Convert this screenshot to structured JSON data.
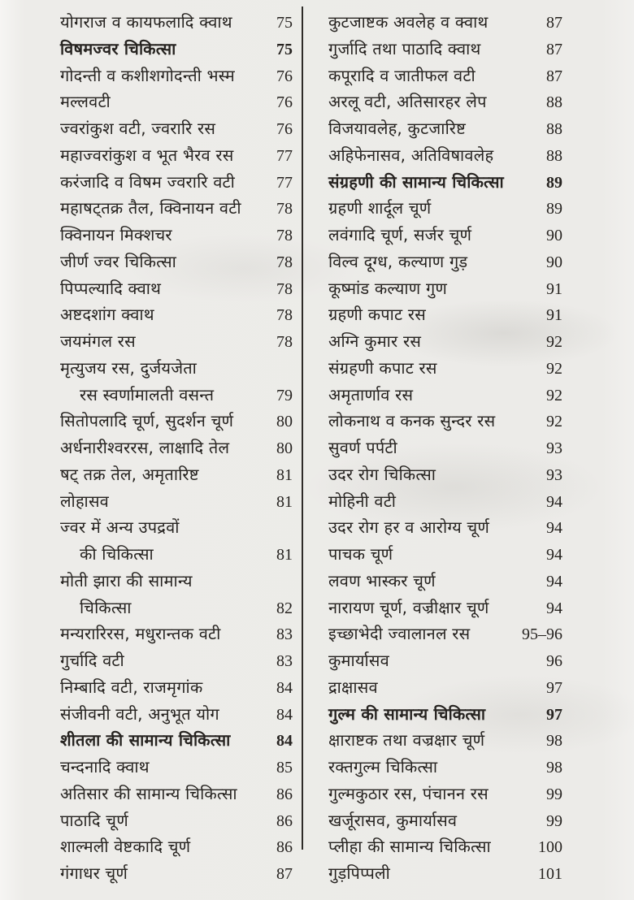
{
  "toc": {
    "left_column": {
      "entries": [
        {
          "title": "योगराज व कायफलादि क्वाथ",
          "page": "75",
          "bold": false,
          "indent": false
        },
        {
          "title": "विषमज्वर चिकित्सा",
          "page": "75",
          "bold": true,
          "indent": false
        },
        {
          "title": "गोदन्ती व कशीशगोदन्ती भस्म",
          "page": "76",
          "bold": false,
          "indent": false
        },
        {
          "title": "मल्लवटी",
          "page": "76",
          "bold": false,
          "indent": false
        },
        {
          "title": "ज्वरांकुश वटी, ज्वरारि रस",
          "page": "76",
          "bold": false,
          "indent": false
        },
        {
          "title": "महाज्वरांकुश व भूत भैरव रस",
          "page": "77",
          "bold": false,
          "indent": false
        },
        {
          "title": "करंजादि व विषम ज्वरारि वटी",
          "page": "77",
          "bold": false,
          "indent": false
        },
        {
          "title": "महाषट्तक्र तैल, क्विनायन वटी",
          "page": "78",
          "bold": false,
          "indent": false
        },
        {
          "title": "क्विनायन मिक्शचर",
          "page": "78",
          "bold": false,
          "indent": false
        },
        {
          "title": "जीर्ण ज्वर चिकित्सा",
          "page": "78",
          "bold": false,
          "indent": false
        },
        {
          "title": "पिप्पल्यादि क्वाथ",
          "page": "78",
          "bold": false,
          "indent": false
        },
        {
          "title": "अष्टदशांग क्वाथ",
          "page": "78",
          "bold": false,
          "indent": false
        },
        {
          "title": "जयमंगल रस",
          "page": "78",
          "bold": false,
          "indent": false
        },
        {
          "title": "मृत्युजय रस, दुर्जयजेता",
          "page": "",
          "bold": false,
          "indent": false
        },
        {
          "title": "रस स्वर्णामालती वसन्त",
          "page": "79",
          "bold": false,
          "indent": true
        },
        {
          "title": "सितोपलादि चूर्ण, सुदर्शन चूर्ण",
          "page": "80",
          "bold": false,
          "indent": false
        },
        {
          "title": "अर्धनारीश्वररस, लाक्षादि तेल",
          "page": "80",
          "bold": false,
          "indent": false
        },
        {
          "title": "षट् तक्र तेल, अमृतारिष्ट",
          "page": "81",
          "bold": false,
          "indent": false
        },
        {
          "title": "लोहासव",
          "page": "81",
          "bold": false,
          "indent": false
        },
        {
          "title": "ज्वर में अन्य उपद्रवों",
          "page": "",
          "bold": false,
          "indent": false
        },
        {
          "title": "की चिकित्सा",
          "page": "81",
          "bold": false,
          "indent": true
        },
        {
          "title": "मोती झारा की सामान्य",
          "page": "",
          "bold": false,
          "indent": false
        },
        {
          "title": "चिकित्सा",
          "page": "82",
          "bold": false,
          "indent": true
        },
        {
          "title": "मन्यरारिरस, मधुरान्तक वटी",
          "page": "83",
          "bold": false,
          "indent": false
        },
        {
          "title": "गुर्चादि वटी",
          "page": "83",
          "bold": false,
          "indent": false
        },
        {
          "title": "निम्बादि वटी, राजमृगांक",
          "page": "84",
          "bold": false,
          "indent": false
        },
        {
          "title": "संजीवनी वटी, अनुभूत योग",
          "page": "84",
          "bold": false,
          "indent": false
        },
        {
          "title": "शीतला की सामान्य चिकित्सा",
          "page": "84",
          "bold": true,
          "indent": false
        },
        {
          "title": "चन्दनादि क्वाथ",
          "page": "85",
          "bold": false,
          "indent": false
        },
        {
          "title": "अतिसार की सामान्य चिकित्सा",
          "page": "86",
          "bold": false,
          "indent": false
        },
        {
          "title": "पाठादि चूर्ण",
          "page": "86",
          "bold": false,
          "indent": false
        },
        {
          "title": "शाल्मली वेष्टकादि चूर्ण",
          "page": "86",
          "bold": false,
          "indent": false
        },
        {
          "title": "गंगाधर चूर्ण",
          "page": "87",
          "bold": false,
          "indent": false
        }
      ]
    },
    "right_column": {
      "entries": [
        {
          "title": "कुटजाष्टक अवलेह व क्वाथ",
          "page": "87",
          "bold": false,
          "indent": false
        },
        {
          "title": "गुर्जादि तथा पाठादि क्वाथ",
          "page": "87",
          "bold": false,
          "indent": false
        },
        {
          "title": "कपूरादि व जातीफल वटी",
          "page": "87",
          "bold": false,
          "indent": false
        },
        {
          "title": "अरलू वटी, अतिसारहर लेप",
          "page": "88",
          "bold": false,
          "indent": false
        },
        {
          "title": "विजयावलेह, कुटजारिष्ट",
          "page": "88",
          "bold": false,
          "indent": false
        },
        {
          "title": "अहिफेनासव, अतिविषावलेह",
          "page": "88",
          "bold": false,
          "indent": false
        },
        {
          "title": "संग्रहणी की सामान्य चिकित्सा",
          "page": "89",
          "bold": true,
          "indent": false
        },
        {
          "title": "ग्रहणी शार्दूल चूर्ण",
          "page": "89",
          "bold": false,
          "indent": false
        },
        {
          "title": "लवंगादि चूर्ण, सर्जर चूर्ण",
          "page": "90",
          "bold": false,
          "indent": false
        },
        {
          "title": "विल्व दूग्ध, कल्याण गुड़",
          "page": "90",
          "bold": false,
          "indent": false
        },
        {
          "title": "कूष्मांड कल्याण गुण",
          "page": "91",
          "bold": false,
          "indent": false
        },
        {
          "title": "ग्रहणी कपाट रस",
          "page": "91",
          "bold": false,
          "indent": false
        },
        {
          "title": "अग्नि कुमार रस",
          "page": "92",
          "bold": false,
          "indent": false
        },
        {
          "title": "संग्रहणी कपाट रस",
          "page": "92",
          "bold": false,
          "indent": false
        },
        {
          "title": "अमृतार्णाव रस",
          "page": "92",
          "bold": false,
          "indent": false
        },
        {
          "title": "लोकनाथ व कनक सुन्दर रस",
          "page": "92",
          "bold": false,
          "indent": false
        },
        {
          "title": "सुवर्ण पर्पटी",
          "page": "93",
          "bold": false,
          "indent": false
        },
        {
          "title": "उदर रोग चिकित्सा",
          "page": "93",
          "bold": false,
          "indent": false
        },
        {
          "title": "मोहिनी वटी",
          "page": "94",
          "bold": false,
          "indent": false
        },
        {
          "title": "उदर रोग हर व आरोग्य चूर्ण",
          "page": "94",
          "bold": false,
          "indent": false
        },
        {
          "title": "पाचक चूर्ण",
          "page": "94",
          "bold": false,
          "indent": false
        },
        {
          "title": "लवण भास्कर चूर्ण",
          "page": "94",
          "bold": false,
          "indent": false
        },
        {
          "title": "नारायण चूर्ण, वज्रीक्षार चूर्ण",
          "page": "94",
          "bold": false,
          "indent": false
        },
        {
          "title": "इच्छाभेदी ज्वालानल रस",
          "page": "95–96",
          "bold": false,
          "indent": false
        },
        {
          "title": "कुमार्यासव",
          "page": "96",
          "bold": false,
          "indent": false
        },
        {
          "title": "द्राक्षासव",
          "page": "97",
          "bold": false,
          "indent": false
        },
        {
          "title": "गुल्म की सामान्य चिकित्सा",
          "page": "97",
          "bold": true,
          "indent": false
        },
        {
          "title": "क्षाराष्टक तथा वज्रक्षार चूर्ण",
          "page": "98",
          "bold": false,
          "indent": false
        },
        {
          "title": "रक्तगुल्म चिकित्सा",
          "page": "98",
          "bold": false,
          "indent": false
        },
        {
          "title": "गुल्मकुठार रस, पंचानन रस",
          "page": "99",
          "bold": false,
          "indent": false
        },
        {
          "title": "खर्जूरासव, कुमार्यासव",
          "page": "99",
          "bold": false,
          "indent": false
        },
        {
          "title": "प्लीहा की सामान्य चिकित्सा",
          "page": "100",
          "bold": false,
          "indent": false
        },
        {
          "title": "गुड़पिप्पली",
          "page": "101",
          "bold": false,
          "indent": false
        }
      ]
    }
  }
}
